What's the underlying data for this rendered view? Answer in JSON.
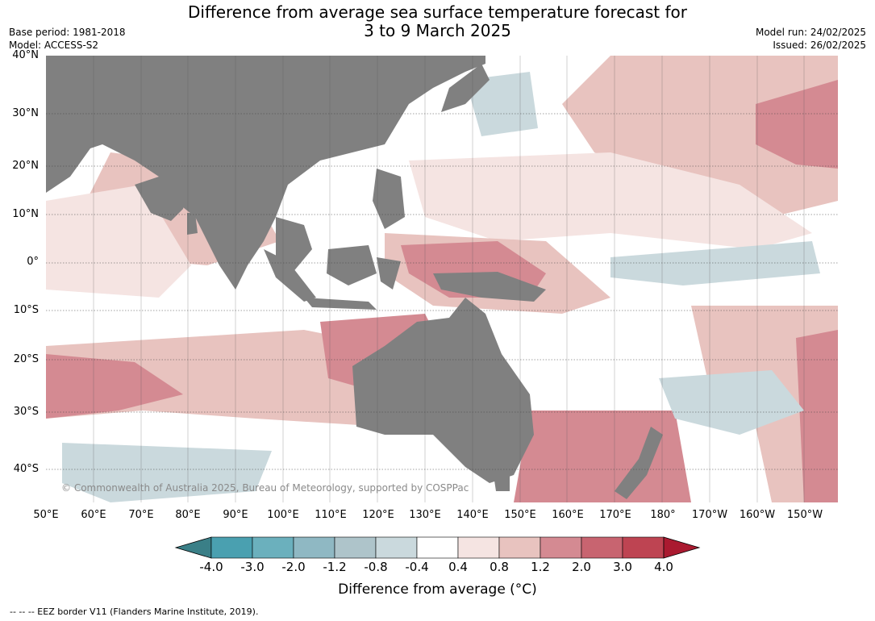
{
  "header": {
    "title_line1": "Difference from average sea surface temperature forecast for",
    "title_line2": "3 to 9 March 2025",
    "base_period": "Base period: 1981-2018",
    "model": "Model: ACCESS-S2",
    "model_run": "Model run: 24/02/2025",
    "issued": "Issued: 26/02/2025"
  },
  "map": {
    "lat_labels": [
      "40°N",
      "30°N",
      "20°N",
      "10°N",
      "0°",
      "10°S",
      "20°S",
      "30°S",
      "40°S"
    ],
    "lon_labels": [
      "50°E",
      "60°E",
      "70°E",
      "80°E",
      "90°E",
      "100°E",
      "110°E",
      "120°E",
      "130°E",
      "140°E",
      "150°E",
      "160°E",
      "170°E",
      "180°",
      "170°W",
      "160°W",
      "150°W"
    ],
    "copyright": "© Commonwealth of Australia 2025, Bureau of Meteorology, supported by COSPPac",
    "land_color": "#808080"
  },
  "legend": {
    "ticks": [
      "-4.0",
      "-3.0",
      "-2.0",
      "-1.2",
      "-0.8",
      "-0.4",
      "0.4",
      "0.8",
      "1.2",
      "2.0",
      "3.0",
      "4.0"
    ],
    "colors": [
      "#3a7f87",
      "#4aa0b0",
      "#6bb0bd",
      "#8fb8c3",
      "#aec4ca",
      "#cad9dd",
      "#ffffff",
      "#f5e4e2",
      "#e8c3bf",
      "#d48a92",
      "#c86470",
      "#be4452",
      "#aa1a30"
    ],
    "label": "Difference from average (°C)"
  },
  "footer": {
    "eez_note": "--  --  -- EEZ border V11 (Flanders Marine Institute, 2019)."
  }
}
